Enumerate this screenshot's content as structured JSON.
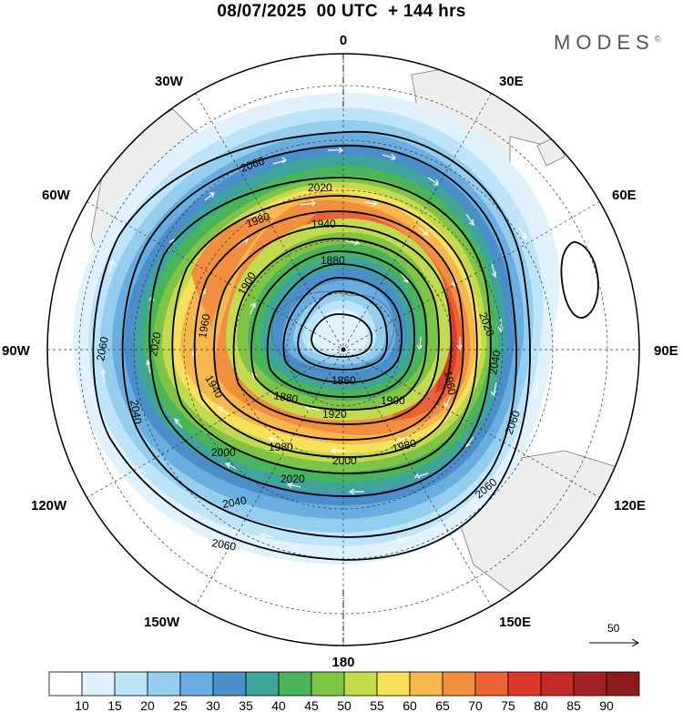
{
  "header": {
    "title": "08/07/2025  00 UTC  + 144 hrs",
    "brand": "MODES",
    "brand_mark": "©"
  },
  "map": {
    "projection": "south-polar-stereographic",
    "longitude_labels": {
      "top": "0",
      "bottom": "180",
      "left": "90W",
      "right": "90E",
      "ul30": "30W",
      "ur30": "30E",
      "ul60": "60W",
      "ur60": "60E",
      "ll120": "120W",
      "lr120": "120E",
      "ll150": "150W",
      "lr150": "150E"
    },
    "contour_labels": [
      "2060",
      "2020",
      "1980",
      "1940",
      "1900",
      "1880",
      "2020",
      "1960",
      "2060",
      "2020",
      "1940",
      "1880",
      "1860",
      "1900",
      "1920",
      "1980",
      "2000",
      "1980",
      "2000",
      "2020",
      "2040",
      "2040",
      "2060",
      "2060",
      "2040",
      "1960",
      "2060"
    ],
    "vector_reference": {
      "value": "50"
    }
  },
  "colorbar": {
    "labels": [
      "10",
      "15",
      "20",
      "25",
      "30",
      "35",
      "40",
      "45",
      "50",
      "55",
      "60",
      "65",
      "70",
      "75",
      "80",
      "85",
      "90"
    ],
    "colors": [
      "#ffffff",
      "#dff2fd",
      "#bde4f8",
      "#94cdee",
      "#6aaee0",
      "#4a8fc9",
      "#3fa49a",
      "#49b45a",
      "#7fc444",
      "#c3da4d",
      "#f7e05a",
      "#f6b84c",
      "#f28f3f",
      "#ec6233",
      "#de3a2b",
      "#c52a2a",
      "#a51f26",
      "#8c1a1f"
    ]
  }
}
